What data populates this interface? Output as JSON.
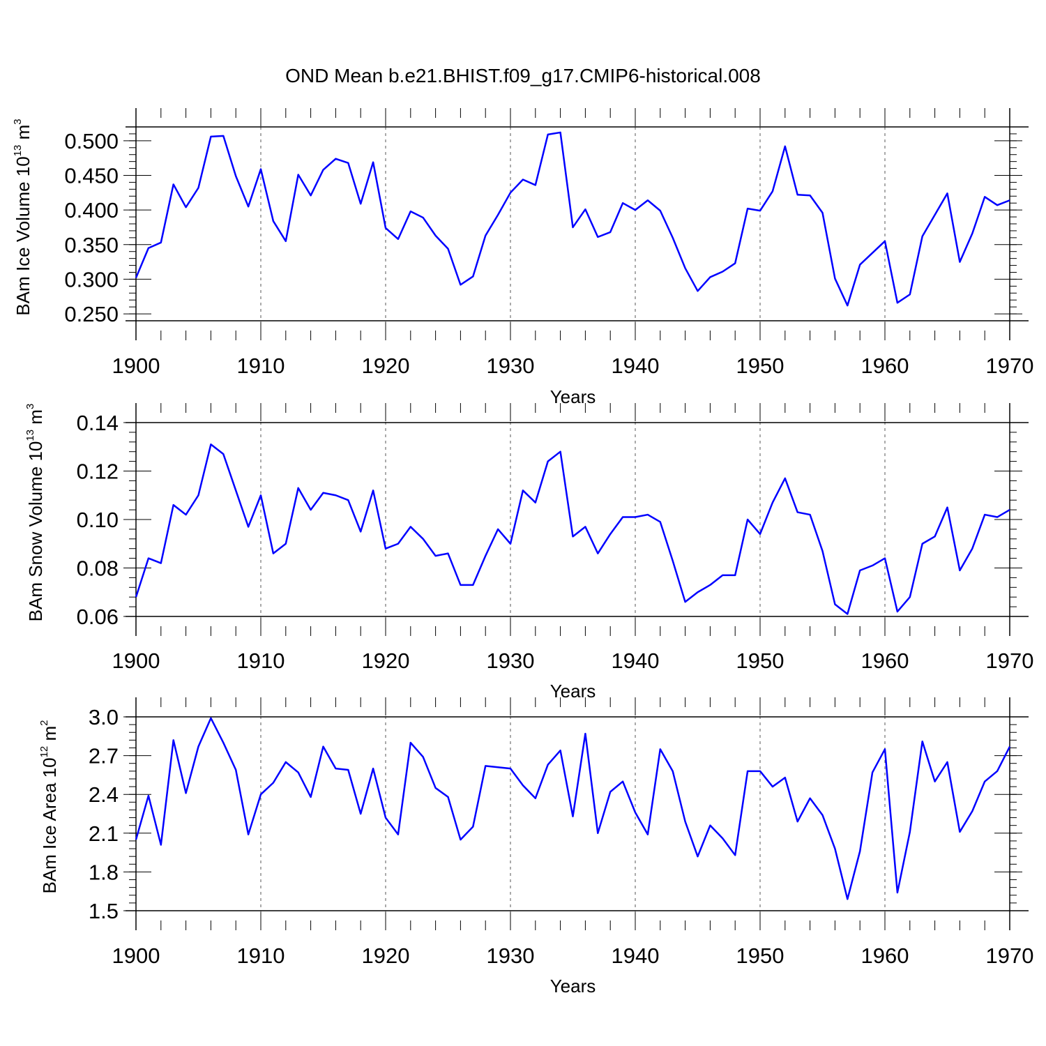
{
  "title": "OND Mean b.e21.BHIST.f09_g17.CMIP6-historical.008",
  "chart_data": [
    {
      "type": "line",
      "id": "ice-volume",
      "ylabel": "BAm Ice Volume 10",
      "ylabel_exp": "13",
      "ylabel_unit": " m",
      "ylabel_unit_exp": "3",
      "xlabel": "Years",
      "xlim": [
        1900,
        1970
      ],
      "ylim": [
        0.24,
        0.52
      ],
      "xticks": [
        "1900",
        "1910",
        "1920",
        "1930",
        "1940",
        "1950",
        "1960",
        "1970"
      ],
      "yticks": [
        "0.250",
        "0.300",
        "0.350",
        "0.400",
        "0.450",
        "0.500"
      ],
      "ytick_values": [
        0.25,
        0.3,
        0.35,
        0.4,
        0.45,
        0.5
      ],
      "grid": "vertical dashed at decades",
      "color": "#0000ff",
      "x_start": 1900,
      "values": [
        0.302,
        0.345,
        0.353,
        0.437,
        0.404,
        0.432,
        0.506,
        0.507,
        0.449,
        0.405,
        0.459,
        0.384,
        0.355,
        0.451,
        0.421,
        0.458,
        0.474,
        0.468,
        0.409,
        0.469,
        0.374,
        0.358,
        0.398,
        0.389,
        0.363,
        0.344,
        0.292,
        0.304,
        0.363,
        0.393,
        0.425,
        0.444,
        0.436,
        0.509,
        0.512,
        0.375,
        0.401,
        0.361,
        0.368,
        0.41,
        0.4,
        0.414,
        0.399,
        0.36,
        0.316,
        0.283,
        0.303,
        0.311,
        0.323,
        0.402,
        0.399,
        0.427,
        0.492,
        0.422,
        0.421,
        0.396,
        0.301,
        0.262,
        0.321,
        0.338,
        0.355,
        0.266,
        0.278,
        0.362,
        0.393,
        0.424,
        0.325,
        0.366,
        0.419,
        0.407,
        0.414
      ]
    },
    {
      "type": "line",
      "id": "snow-volume",
      "ylabel": "BAm Snow Volume 10",
      "ylabel_exp": "13",
      "ylabel_unit": " m",
      "ylabel_unit_exp": "3",
      "xlabel": "Years",
      "xlim": [
        1900,
        1970
      ],
      "ylim": [
        0.06,
        0.14
      ],
      "xticks": [
        "1900",
        "1910",
        "1920",
        "1930",
        "1940",
        "1950",
        "1960",
        "1970"
      ],
      "yticks": [
        "0.06",
        "0.08",
        "0.10",
        "0.12",
        "0.14"
      ],
      "ytick_values": [
        0.06,
        0.08,
        0.1,
        0.12,
        0.14
      ],
      "grid": "vertical dashed at decades",
      "color": "#0000ff",
      "x_start": 1900,
      "values": [
        0.068,
        0.084,
        0.082,
        0.106,
        0.102,
        0.11,
        0.131,
        0.127,
        0.112,
        0.097,
        0.11,
        0.086,
        0.09,
        0.113,
        0.104,
        0.111,
        0.11,
        0.108,
        0.095,
        0.112,
        0.088,
        0.09,
        0.097,
        0.092,
        0.085,
        0.086,
        0.073,
        0.073,
        0.085,
        0.096,
        0.09,
        0.112,
        0.107,
        0.124,
        0.128,
        0.093,
        0.097,
        0.086,
        0.094,
        0.101,
        0.101,
        0.102,
        0.099,
        0.083,
        0.066,
        0.07,
        0.073,
        0.077,
        0.077,
        0.1,
        0.094,
        0.107,
        0.117,
        0.103,
        0.102,
        0.087,
        0.065,
        0.061,
        0.079,
        0.081,
        0.084,
        0.062,
        0.068,
        0.09,
        0.093,
        0.105,
        0.079,
        0.088,
        0.102,
        0.101,
        0.104
      ]
    },
    {
      "type": "line",
      "id": "ice-area",
      "ylabel": "BAm Ice Area 10",
      "ylabel_exp": "12",
      "ylabel_unit": " m",
      "ylabel_unit_exp": "2",
      "xlabel": "Years",
      "xlim": [
        1900,
        1970
      ],
      "ylim": [
        1.5,
        3.0
      ],
      "xticks": [
        "1900",
        "1910",
        "1920",
        "1930",
        "1940",
        "1950",
        "1960",
        "1970"
      ],
      "yticks": [
        "1.5",
        "1.8",
        "2.1",
        "2.4",
        "2.7",
        "3.0"
      ],
      "ytick_values": [
        1.5,
        1.8,
        2.1,
        2.4,
        2.7,
        3.0
      ],
      "grid": "vertical dashed at decades",
      "color": "#0000ff",
      "x_start": 1900,
      "values": [
        2.05,
        2.39,
        2.01,
        2.82,
        2.41,
        2.77,
        2.99,
        2.8,
        2.59,
        2.09,
        2.4,
        2.49,
        2.65,
        2.57,
        2.38,
        2.77,
        2.6,
        2.59,
        2.25,
        2.6,
        2.22,
        2.09,
        2.8,
        2.69,
        2.45,
        2.38,
        2.05,
        2.15,
        2.62,
        2.61,
        2.6,
        2.47,
        2.37,
        2.63,
        2.74,
        2.23,
        2.87,
        2.1,
        2.42,
        2.5,
        2.26,
        2.09,
        2.75,
        2.58,
        2.19,
        1.92,
        2.16,
        2.06,
        1.93,
        2.58,
        2.58,
        2.46,
        2.53,
        2.19,
        2.37,
        2.24,
        1.98,
        1.59,
        1.96,
        2.57,
        2.75,
        1.64,
        2.11,
        2.81,
        2.5,
        2.65,
        2.11,
        2.27,
        2.5,
        2.58,
        2.77
      ]
    }
  ]
}
